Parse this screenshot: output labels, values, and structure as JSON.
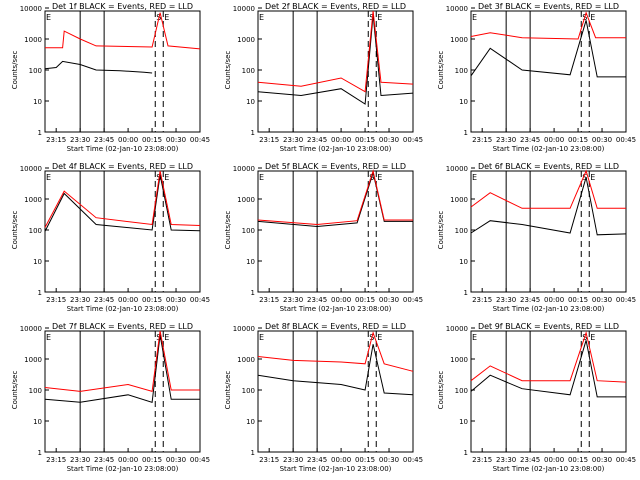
{
  "figure": {
    "background": "#ffffff",
    "event_color": "#000000",
    "lld_color": "#ff0000",
    "ylabel": "Counts/sec",
    "xlabel": "Start Time (02-Jan-10 23:08:00)",
    "xticks": [
      "23:15",
      "23:30",
      "23:45",
      "00:00",
      "00:15",
      "00:30",
      "00:45"
    ],
    "yticks": [
      "1",
      "10",
      "100",
      "1000",
      "10000"
    ]
  },
  "chart_data": [
    {
      "type": "line",
      "title": "Det 1f BLACK = Events, RED = LLD",
      "ylim": [
        1,
        10000
      ],
      "log_y": true,
      "markers": {
        "E_solid": [
          "23:08",
          "23:30",
          "23:45"
        ],
        "dashed": [
          "00:17",
          "00:22"
        ],
        "letters": [
          "E",
          "S",
          "E"
        ]
      },
      "series": [
        {
          "name": "Events",
          "values": [
            {
              "t": "23:08",
              "v": 110
            },
            {
              "t": "23:15",
              "v": 120
            },
            {
              "t": "23:19",
              "v": 190
            },
            {
              "t": "23:30",
              "v": 150
            },
            {
              "t": "23:40",
              "v": 100
            },
            {
              "t": "23:55",
              "v": 95
            },
            {
              "t": "00:10",
              "v": 85
            },
            {
              "t": "00:15",
              "v": 80
            }
          ]
        },
        {
          "name": "LLD",
          "values": [
            {
              "t": "23:08",
              "v": 520
            },
            {
              "t": "23:19",
              "v": 520
            },
            {
              "t": "23:20",
              "v": 1800
            },
            {
              "t": "23:30",
              "v": 1000
            },
            {
              "t": "23:40",
              "v": 600
            },
            {
              "t": "00:15",
              "v": 550
            },
            {
              "t": "00:20",
              "v": 7000
            },
            {
              "t": "00:25",
              "v": 600
            },
            {
              "t": "00:45",
              "v": 480
            }
          ]
        }
      ]
    },
    {
      "type": "line",
      "title": "Det 2f BLACK = Events, RED = LLD",
      "ylim": [
        1,
        10000
      ],
      "log_y": true,
      "markers": {
        "E_solid": [
          "23:08",
          "23:30",
          "23:45"
        ],
        "dashed": [
          "00:17",
          "00:22"
        ],
        "letters": [
          "E",
          "S",
          "E"
        ]
      },
      "series": [
        {
          "name": "Events",
          "values": [
            {
              "t": "23:08",
              "v": 20
            },
            {
              "t": "23:35",
              "v": 15
            },
            {
              "t": "00:00",
              "v": 25
            },
            {
              "t": "00:15",
              "v": 8
            },
            {
              "t": "00:20",
              "v": 6000
            },
            {
              "t": "00:25",
              "v": 15
            },
            {
              "t": "00:45",
              "v": 18
            }
          ]
        },
        {
          "name": "LLD",
          "values": [
            {
              "t": "23:08",
              "v": 40
            },
            {
              "t": "23:35",
              "v": 30
            },
            {
              "t": "00:00",
              "v": 55
            },
            {
              "t": "00:15",
              "v": 20
            },
            {
              "t": "00:20",
              "v": 8000
            },
            {
              "t": "00:25",
              "v": 40
            },
            {
              "t": "00:45",
              "v": 35
            }
          ]
        }
      ]
    },
    {
      "type": "line",
      "title": "Det 3f BLACK = Events, RED = LLD",
      "ylim": [
        1,
        10000
      ],
      "log_y": true,
      "markers": {
        "E_solid": [
          "23:08",
          "23:30",
          "23:45"
        ],
        "dashed": [
          "00:17",
          "00:22"
        ],
        "letters": [
          "E",
          "S",
          "E"
        ]
      },
      "series": [
        {
          "name": "Events",
          "values": [
            {
              "t": "23:08",
              "v": 65
            },
            {
              "t": "23:20",
              "v": 500
            },
            {
              "t": "23:40",
              "v": 100
            },
            {
              "t": "00:10",
              "v": 70
            },
            {
              "t": "00:20",
              "v": 4000
            },
            {
              "t": "00:27",
              "v": 60
            },
            {
              "t": "00:45",
              "v": 60
            }
          ]
        },
        {
          "name": "LLD",
          "values": [
            {
              "t": "23:08",
              "v": 1200
            },
            {
              "t": "23:20",
              "v": 1600
            },
            {
              "t": "23:40",
              "v": 1100
            },
            {
              "t": "00:15",
              "v": 1000
            },
            {
              "t": "00:20",
              "v": 7000
            },
            {
              "t": "00:26",
              "v": 1100
            },
            {
              "t": "00:45",
              "v": 1100
            }
          ]
        }
      ]
    },
    {
      "type": "line",
      "title": "Det 4f BLACK = Events, RED = LLD",
      "ylim": [
        1,
        10000
      ],
      "log_y": true,
      "markers": {
        "E_solid": [
          "23:08",
          "23:30",
          "23:45"
        ],
        "dashed": [
          "00:17",
          "00:22"
        ],
        "letters": [
          "E",
          "S",
          "E"
        ]
      },
      "series": [
        {
          "name": "Events",
          "values": [
            {
              "t": "23:08",
              "v": 90
            },
            {
              "t": "23:20",
              "v": 1500
            },
            {
              "t": "23:40",
              "v": 150
            },
            {
              "t": "00:15",
              "v": 100
            },
            {
              "t": "00:20",
              "v": 6000
            },
            {
              "t": "00:27",
              "v": 100
            },
            {
              "t": "00:45",
              "v": 95
            }
          ]
        },
        {
          "name": "LLD",
          "values": [
            {
              "t": "23:08",
              "v": 120
            },
            {
              "t": "23:20",
              "v": 1800
            },
            {
              "t": "23:40",
              "v": 250
            },
            {
              "t": "00:15",
              "v": 150
            },
            {
              "t": "00:20",
              "v": 8000
            },
            {
              "t": "00:27",
              "v": 150
            },
            {
              "t": "00:45",
              "v": 140
            }
          ]
        }
      ]
    },
    {
      "type": "line",
      "title": "Det 5f BLACK = Events, RED = LLD",
      "ylim": [
        1,
        10000
      ],
      "log_y": true,
      "markers": {
        "E_solid": [
          "23:08",
          "23:30",
          "23:45"
        ],
        "dashed": [
          "00:17",
          "00:22"
        ],
        "letters": [
          "E",
          "S",
          "E"
        ]
      },
      "series": [
        {
          "name": "Events",
          "values": [
            {
              "t": "23:08",
              "v": 190
            },
            {
              "t": "23:45",
              "v": 130
            },
            {
              "t": "00:10",
              "v": 170
            },
            {
              "t": "00:20",
              "v": 7000
            },
            {
              "t": "00:27",
              "v": 190
            },
            {
              "t": "00:45",
              "v": 190
            }
          ]
        },
        {
          "name": "LLD",
          "values": [
            {
              "t": "23:08",
              "v": 210
            },
            {
              "t": "23:45",
              "v": 150
            },
            {
              "t": "00:10",
              "v": 200
            },
            {
              "t": "00:20",
              "v": 8000
            },
            {
              "t": "00:27",
              "v": 210
            },
            {
              "t": "00:45",
              "v": 210
            }
          ]
        }
      ]
    },
    {
      "type": "line",
      "title": "Det 6f BLACK = Events, RED = LLD",
      "ylim": [
        1,
        10000
      ],
      "log_y": true,
      "markers": {
        "E_solid": [
          "23:08",
          "23:30",
          "23:45"
        ],
        "dashed": [
          "00:17",
          "00:22"
        ],
        "letters": [
          "E",
          "S",
          "E"
        ]
      },
      "series": [
        {
          "name": "Events",
          "values": [
            {
              "t": "23:08",
              "v": 80
            },
            {
              "t": "23:20",
              "v": 200
            },
            {
              "t": "23:40",
              "v": 150
            },
            {
              "t": "00:10",
              "v": 80
            },
            {
              "t": "00:20",
              "v": 5000
            },
            {
              "t": "00:27",
              "v": 70
            },
            {
              "t": "00:45",
              "v": 75
            }
          ]
        },
        {
          "name": "LLD",
          "values": [
            {
              "t": "23:08",
              "v": 550
            },
            {
              "t": "23:20",
              "v": 1600
            },
            {
              "t": "23:40",
              "v": 500
            },
            {
              "t": "00:10",
              "v": 500
            },
            {
              "t": "00:20",
              "v": 8000
            },
            {
              "t": "00:27",
              "v": 500
            },
            {
              "t": "00:45",
              "v": 500
            }
          ]
        }
      ]
    },
    {
      "type": "line",
      "title": "Det 7f BLACK = Events, RED = LLD",
      "ylim": [
        1,
        10000
      ],
      "log_y": true,
      "markers": {
        "E_solid": [
          "23:08",
          "23:30",
          "23:45"
        ],
        "dashed": [
          "00:17",
          "00:22"
        ],
        "letters": [
          "E",
          "S",
          "E"
        ]
      },
      "series": [
        {
          "name": "Events",
          "values": [
            {
              "t": "23:08",
              "v": 50
            },
            {
              "t": "23:30",
              "v": 40
            },
            {
              "t": "00:00",
              "v": 70
            },
            {
              "t": "00:15",
              "v": 40
            },
            {
              "t": "00:20",
              "v": 6000
            },
            {
              "t": "00:27",
              "v": 50
            },
            {
              "t": "00:45",
              "v": 50
            }
          ]
        },
        {
          "name": "LLD",
          "values": [
            {
              "t": "23:08",
              "v": 120
            },
            {
              "t": "23:30",
              "v": 90
            },
            {
              "t": "00:00",
              "v": 150
            },
            {
              "t": "00:15",
              "v": 90
            },
            {
              "t": "00:20",
              "v": 8000
            },
            {
              "t": "00:27",
              "v": 100
            },
            {
              "t": "00:45",
              "v": 100
            }
          ]
        }
      ]
    },
    {
      "type": "line",
      "title": "Det 8f BLACK = Events, RED = LLD",
      "ylim": [
        1,
        10000
      ],
      "log_y": true,
      "markers": {
        "E_solid": [
          "23:08",
          "23:30",
          "23:45"
        ],
        "dashed": [
          "00:17",
          "00:22"
        ],
        "letters": [
          "E",
          "S",
          "E"
        ]
      },
      "series": [
        {
          "name": "Events",
          "values": [
            {
              "t": "23:08",
              "v": 300
            },
            {
              "t": "23:30",
              "v": 200
            },
            {
              "t": "00:00",
              "v": 150
            },
            {
              "t": "00:15",
              "v": 100
            },
            {
              "t": "00:20",
              "v": 3000
            },
            {
              "t": "00:27",
              "v": 80
            },
            {
              "t": "00:45",
              "v": 70
            }
          ]
        },
        {
          "name": "LLD",
          "values": [
            {
              "t": "23:08",
              "v": 1200
            },
            {
              "t": "23:30",
              "v": 900
            },
            {
              "t": "00:00",
              "v": 800
            },
            {
              "t": "00:15",
              "v": 700
            },
            {
              "t": "00:20",
              "v": 7000
            },
            {
              "t": "00:27",
              "v": 700
            },
            {
              "t": "00:45",
              "v": 400
            }
          ]
        }
      ]
    },
    {
      "type": "line",
      "title": "Det 9f BLACK = Events, RED = LLD",
      "ylim": [
        1,
        10000
      ],
      "log_y": true,
      "markers": {
        "E_solid": [
          "23:08",
          "23:30",
          "23:45"
        ],
        "dashed": [
          "00:17",
          "00:22"
        ],
        "letters": [
          "E",
          "S",
          "E"
        ]
      },
      "series": [
        {
          "name": "Events",
          "values": [
            {
              "t": "23:08",
              "v": 90
            },
            {
              "t": "23:20",
              "v": 300
            },
            {
              "t": "23:40",
              "v": 110
            },
            {
              "t": "00:10",
              "v": 70
            },
            {
              "t": "00:20",
              "v": 4000
            },
            {
              "t": "00:27",
              "v": 60
            },
            {
              "t": "00:45",
              "v": 60
            }
          ]
        },
        {
          "name": "LLD",
          "values": [
            {
              "t": "23:08",
              "v": 200
            },
            {
              "t": "23:20",
              "v": 600
            },
            {
              "t": "23:40",
              "v": 200
            },
            {
              "t": "00:10",
              "v": 200
            },
            {
              "t": "00:20",
              "v": 7000
            },
            {
              "t": "00:27",
              "v": 200
            },
            {
              "t": "00:45",
              "v": 180
            }
          ]
        }
      ]
    }
  ]
}
